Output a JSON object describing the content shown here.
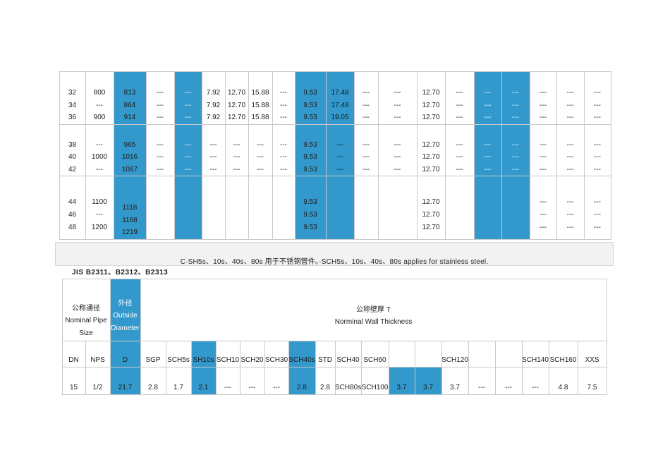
{
  "top_table": {
    "groups": [
      {
        "rows": [
          [
            "32",
            "800",
            "813",
            "---",
            "---",
            "7.92",
            "12.70",
            "15.88",
            "---",
            "9.53",
            "17.48",
            "---",
            "---",
            "12.70",
            "---",
            "---",
            "---",
            "---",
            "---",
            "---"
          ],
          [
            "34",
            "---",
            "864",
            "---",
            "---",
            "7.92",
            "12.70",
            "15.88",
            "---",
            "9.53",
            "17.48",
            "---",
            "---",
            "12.70",
            "---",
            "---",
            "---",
            "---",
            "---",
            "---"
          ],
          [
            "36",
            "900",
            "914",
            "---",
            "---",
            "7.92",
            "12.70",
            "15.88",
            "---",
            "9.53",
            "19.05",
            "---",
            "---",
            "12.70",
            "---",
            "---",
            "---",
            "---",
            "---",
            "---"
          ]
        ]
      },
      {
        "rows": [
          [
            "38",
            "---",
            "965",
            "---",
            "---",
            "---",
            "---",
            "---",
            "---",
            "9.53",
            "---",
            "---",
            "---",
            "12.70",
            "---",
            "---",
            "---",
            "---",
            "---",
            "---"
          ],
          [
            "40",
            "1000",
            "1016",
            "---",
            "---",
            "---",
            "---",
            "---",
            "---",
            "9.53",
            "---",
            "---",
            "---",
            "12.70",
            "---",
            "---",
            "---",
            "---",
            "---",
            "---"
          ],
          [
            "42",
            "---",
            "1067",
            "---",
            "---",
            "---",
            "---",
            "---",
            "---",
            "9.53",
            "---",
            "---",
            "---",
            "12.70",
            "---",
            "---",
            "---",
            "---",
            "---",
            "---"
          ]
        ]
      },
      {
        "rows": [
          [
            "44",
            "1100",
            "1118",
            "",
            "",
            "",
            "",
            "",
            "",
            "9.53",
            "",
            "",
            "",
            "12.70",
            "",
            "",
            "",
            "---",
            "---",
            "---"
          ],
          [
            "46",
            "---",
            "1168",
            "",
            "",
            "",
            "",
            "",
            "",
            "9.53",
            "",
            "",
            "",
            "12.70",
            "",
            "",
            "",
            "---",
            "---",
            "---"
          ],
          [
            "48",
            "1200",
            "1219",
            "",
            "",
            "",
            "",
            "",
            "",
            "9.53",
            "",
            "",
            "",
            "12.70",
            "",
            "",
            "",
            "---",
            "---",
            "---"
          ]
        ]
      }
    ]
  },
  "note": "C·SH5s、10s、40s、80s 用于不锈钢管件。·SCH5s、10s、40s、80s applies for stainless steel.",
  "standard_title": "JIS B2311、B2312、B2313",
  "bottom_table": {
    "size_header_cn": "公称通径",
    "size_header_en1": "Nominal Pipe",
    "size_header_en2": "Size",
    "od_header_cn": "外径",
    "od_header_en1": "Outside",
    "od_header_en2": "Diameter",
    "wall_header_cn": "公称壁厚 T",
    "wall_header_en": "Norminal Wall Thickness",
    "columns": [
      "DN",
      "NPS",
      "D",
      "SGP",
      "SCH5s",
      "SH10s",
      "SCH10",
      "SCH20",
      "SCH30",
      "SCH40s",
      "STD",
      "SCH40",
      "SCH60",
      "",
      "",
      "SCH120",
      "",
      "",
      "SCH140",
      "SCH160",
      "XXS"
    ],
    "row": [
      "15",
      "1/2",
      "21.7",
      "2.8",
      "1.7",
      "2.1",
      "---",
      "---",
      "---",
      "2.8",
      "2.8",
      "SCH80s",
      "SCH100",
      "3.7",
      "3.7",
      "3.7",
      "---",
      "---",
      "---",
      "4.8",
      "7.5"
    ]
  },
  "colors": {
    "accent": "#3399cc",
    "border": "#c9c9c9",
    "note_bg": "#f2f2f2"
  }
}
